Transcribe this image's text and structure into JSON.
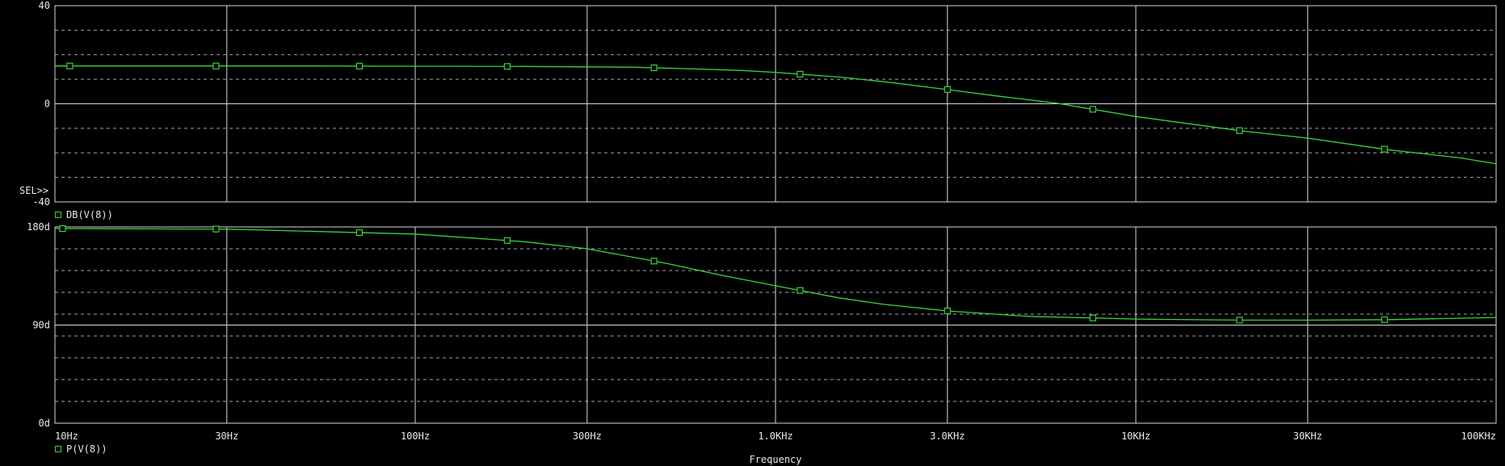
{
  "colors": {
    "background": "#000000",
    "grid": "#d9d9d9",
    "trace": "#3cd23c",
    "text": "#e8e8e8"
  },
  "marker": "SEL>>",
  "chart_data": [
    {
      "type": "line",
      "xscale": "log",
      "xlabel": "Frequency",
      "xlim": [
        10,
        100000
      ],
      "x_ticks": [
        10,
        30,
        100,
        300,
        1000,
        3000,
        10000,
        30000,
        100000
      ],
      "x_tick_labels": [
        "10Hz",
        "30Hz",
        "100Hz",
        "300Hz",
        "1.0KHz",
        "3.0KHz",
        "10KHz",
        "30KHz",
        "100KHz"
      ],
      "ylim": [
        -40,
        40
      ],
      "y_ticks": [
        40,
        0,
        -40
      ],
      "y_tick_labels": [
        "40",
        "0",
        "-40"
      ],
      "series": [
        {
          "name": "DB(V(8))",
          "x": [
            10,
            20,
            50,
            100,
            200,
            400,
            600,
            800,
            1000,
            1500,
            2000,
            3000,
            4000,
            6000,
            10000,
            20000,
            30000,
            50000,
            80000,
            100000
          ],
          "y": [
            15.4,
            15.4,
            15.4,
            15.3,
            15.2,
            14.9,
            14.2,
            13.6,
            12.8,
            10.9,
            9.0,
            5.8,
            3.4,
            0.3,
            -5.2,
            -11.2,
            -14.0,
            -18.7,
            -22.1,
            -24.5
          ],
          "marker_x": [
            11,
            28,
            70,
            180,
            460,
            1170,
            3000,
            7600,
            19400,
            49000
          ]
        }
      ]
    },
    {
      "type": "line",
      "xscale": "log",
      "xlabel": "Frequency",
      "xlim": [
        10,
        100000
      ],
      "x_ticks": [
        10,
        30,
        100,
        300,
        1000,
        3000,
        10000,
        30000,
        100000
      ],
      "x_tick_labels": [
        "10Hz",
        "30Hz",
        "100Hz",
        "300Hz",
        "1.0KHz",
        "3.0KHz",
        "10KHz",
        "30KHz",
        "100KHz"
      ],
      "ylim": [
        0,
        180
      ],
      "y_ticks": [
        180,
        90,
        0
      ],
      "y_tick_labels": [
        "180d",
        "90d",
        "0d"
      ],
      "series": [
        {
          "name": "P(V(8))",
          "x": [
            10,
            30,
            100,
            200,
            300,
            500,
            700,
            1000,
            1500,
            2000,
            3000,
            5000,
            10000,
            20000,
            30000,
            50000,
            100000
          ],
          "y": [
            178.5,
            178,
            173.5,
            166.5,
            160,
            146.5,
            136,
            126,
            115,
            109,
            103,
            98,
            95.5,
            94.5,
            94.5,
            95,
            97
          ],
          "marker_x": [
            10.5,
            28,
            70,
            180,
            460,
            1170,
            3000,
            7600,
            19400,
            49000
          ]
        }
      ]
    }
  ]
}
